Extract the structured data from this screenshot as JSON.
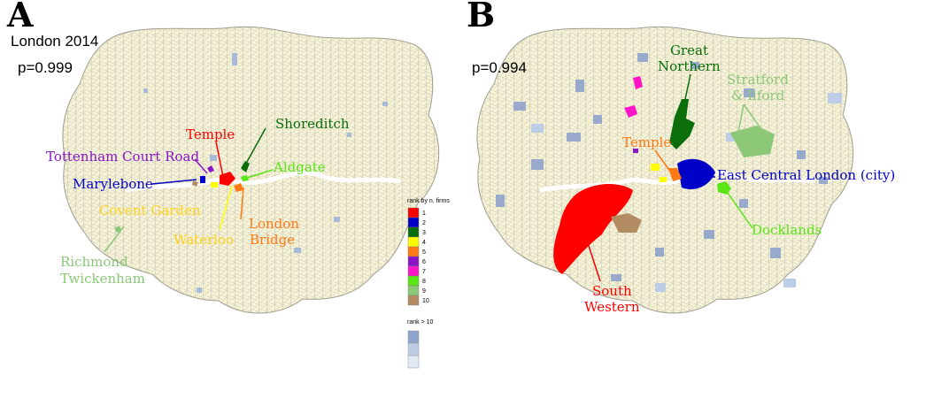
{
  "panel_a": {
    "letter": "A",
    "title": "London 2014",
    "p_value": "p=0.999",
    "labels": {
      "temple": "Temple",
      "shoreditch": "Shoreditch",
      "tottenham": "Tottenham Court Road",
      "aldgate": "Aldgate",
      "marylebone": "Marylebone",
      "covent_garden": "Covent Garden",
      "london": "London",
      "bridge": "Bridge",
      "waterloo": "Waterloo",
      "richmond": "Richmond",
      "twickenham": "Twickenham"
    }
  },
  "panel_b": {
    "letter": "B",
    "p_value": "p=0.994",
    "labels": {
      "great": "Great",
      "northern": "Northern",
      "stratford": "Stratford",
      "ilford": "& Ilford",
      "temple": "Temple",
      "east_central": "East Central London (city)",
      "docklands": "Docklands",
      "south": "South",
      "western": "Western"
    }
  },
  "legend": {
    "title": "rank by n. firms",
    "items": [
      {
        "label": "1",
        "color": "#ff0000"
      },
      {
        "label": "2",
        "color": "#0000c8"
      },
      {
        "label": "3",
        "color": "#0a6e0a"
      },
      {
        "label": "4",
        "color": "#ffff00"
      },
      {
        "label": "5",
        "color": "#ff7a14"
      },
      {
        "label": "6",
        "color": "#8a14c8"
      },
      {
        "label": "7",
        "color": "#ff14c8"
      },
      {
        "label": "8",
        "color": "#5ae614"
      },
      {
        "label": "9",
        "color": "#8cc878"
      },
      {
        "label": "10",
        "color": "#b48c64"
      }
    ],
    "rest_title": "rank > 10",
    "rest_colors": [
      "#8fa3cc",
      "#bdcde6",
      "#dfe8f4"
    ]
  },
  "colors": {
    "land": "#f7f3d7",
    "border": "#b9b7a6",
    "river": "#ffffff"
  }
}
